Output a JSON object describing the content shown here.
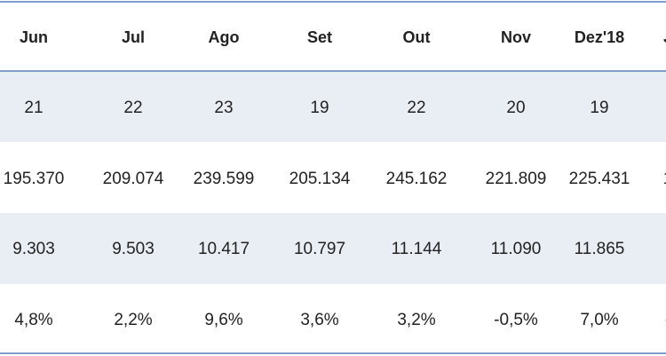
{
  "table": {
    "header": [
      "Jun",
      "Jul",
      "Ago",
      "Set",
      "Out",
      "Nov",
      "Dez'18",
      "J"
    ],
    "rows": [
      [
        "21",
        "22",
        "23",
        "19",
        "22",
        "20",
        "19"
      ],
      [
        "195.370",
        "209.074",
        "239.599",
        "205.134",
        "245.162",
        "221.809",
        "225.431",
        "1"
      ],
      [
        "9.303",
        "9.503",
        "10.417",
        "10.797",
        "11.144",
        "11.090",
        "11.865"
      ],
      [
        "4,8%",
        "2,2%",
        "9,6%",
        "3,6%",
        "3,2%",
        "-0,5%",
        "7,0%",
        "-"
      ]
    ]
  }
}
